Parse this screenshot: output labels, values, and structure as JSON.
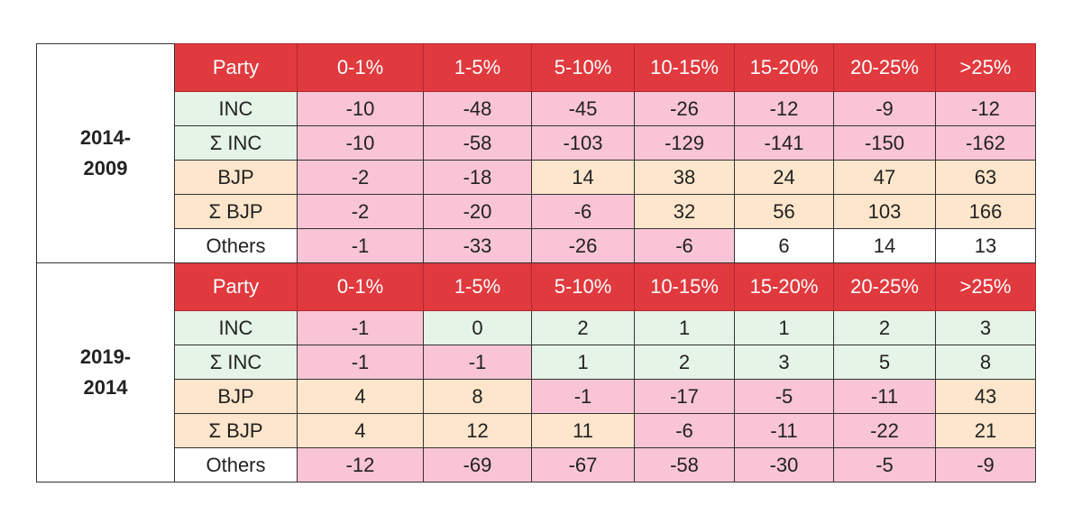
{
  "sections": [
    {
      "label_lines": [
        "2014-",
        "2009"
      ],
      "header": [
        "Party",
        "0-1%",
        "1-5%",
        "5-10%",
        "10-15%",
        "15-20%",
        "20-25%",
        ">25%"
      ],
      "rows": [
        {
          "party": "INC",
          "values": [
            -10,
            -48,
            -45,
            -26,
            -12,
            -9,
            -12
          ]
        },
        {
          "party": "Σ INC",
          "values": [
            -10,
            -58,
            -103,
            -129,
            -141,
            -150,
            -162
          ]
        },
        {
          "party": "BJP",
          "values": [
            -2,
            -18,
            14,
            38,
            24,
            47,
            63
          ]
        },
        {
          "party": "Σ BJP",
          "values": [
            -2,
            -20,
            -6,
            32,
            56,
            103,
            166
          ]
        },
        {
          "party": "Others",
          "values": [
            -1,
            -33,
            -26,
            -6,
            6,
            14,
            13
          ]
        }
      ]
    },
    {
      "label_lines": [
        "2019-",
        "2014"
      ],
      "header": [
        "Party",
        "0-1%",
        "1-5%",
        "5-10%",
        "10-15%",
        "15-20%",
        "20-25%",
        ">25%"
      ],
      "rows": [
        {
          "party": "INC",
          "values": [
            -1,
            0,
            2,
            1,
            1,
            2,
            3
          ]
        },
        {
          "party": "Σ INC",
          "values": [
            -1,
            -1,
            1,
            2,
            3,
            5,
            8
          ]
        },
        {
          "party": "BJP",
          "values": [
            4,
            8,
            -1,
            -17,
            -5,
            -11,
            43
          ]
        },
        {
          "party": "Σ BJP",
          "values": [
            4,
            12,
            11,
            -6,
            -11,
            -22,
            21
          ]
        },
        {
          "party": "Others",
          "values": [
            -12,
            -69,
            -67,
            -58,
            -30,
            -5,
            -9
          ]
        }
      ]
    }
  ]
}
